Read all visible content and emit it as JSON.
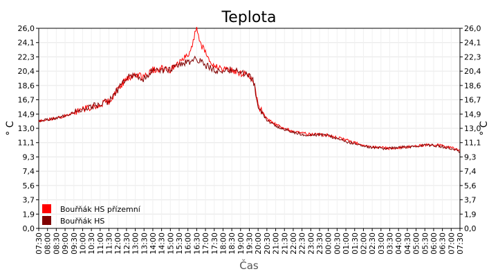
{
  "chart_data": {
    "type": "line",
    "title": "Teplota",
    "xlabel": "Čas",
    "ylabel_left": "° C",
    "ylabel_right": "° C",
    "ylim": [
      0,
      26
    ],
    "y_ticks": [
      "0,0",
      "1,9",
      "3,7",
      "5,6",
      "7,4",
      "9,3",
      "11,1",
      "13,0",
      "14,9",
      "16,7",
      "18,6",
      "20,4",
      "22,3",
      "24,1",
      "26,0"
    ],
    "x_ticks": [
      "07:30",
      "08:00",
      "08:30",
      "09:00",
      "09:30",
      "10:00",
      "10:30",
      "11:00",
      "11:30",
      "12:00",
      "12:30",
      "13:00",
      "13:30",
      "14:00",
      "14:30",
      "15:00",
      "15:30",
      "16:00",
      "16:30",
      "17:00",
      "17:30",
      "18:00",
      "18:30",
      "19:00",
      "19:30",
      "20:00",
      "20:30",
      "21:00",
      "21:30",
      "22:00",
      "22:30",
      "23:00",
      "23:30",
      "00:00",
      "00:30",
      "01:00",
      "01:30",
      "02:00",
      "02:30",
      "03:00",
      "03:30",
      "04:00",
      "04:30",
      "05:00",
      "05:30",
      "06:00",
      "06:30",
      "07:00",
      "07:30"
    ],
    "grid": true,
    "legend_position": "bottom-left",
    "series": [
      {
        "name": "Bouřňák HS přízemní",
        "color": "#ff0000",
        "x": [
          "07:30",
          "08:30",
          "09:30",
          "10:30",
          "11:30",
          "12:00",
          "12:30",
          "13:00",
          "13:30",
          "14:00",
          "14:30",
          "15:00",
          "15:30",
          "16:00",
          "16:15",
          "16:30",
          "16:45",
          "17:00",
          "17:30",
          "18:00",
          "18:30",
          "19:00",
          "19:30",
          "19:45",
          "20:00",
          "20:30",
          "21:00",
          "21:30",
          "22:00",
          "22:30",
          "23:00",
          "23:30",
          "00:00",
          "00:30",
          "01:00",
          "01:30",
          "02:00",
          "02:30",
          "03:00",
          "03:30",
          "04:00",
          "04:30",
          "05:00",
          "05:30",
          "06:00",
          "06:30",
          "07:00",
          "07:30"
        ],
        "values": [
          14.0,
          14.3,
          15.0,
          15.8,
          16.5,
          18.0,
          19.5,
          20.0,
          19.6,
          20.6,
          20.8,
          20.5,
          21.5,
          22.5,
          24.0,
          26.0,
          23.8,
          23.0,
          21.0,
          20.8,
          20.6,
          20.2,
          19.9,
          19.2,
          16.0,
          14.2,
          13.5,
          13.0,
          12.6,
          12.4,
          12.2,
          12.2,
          12.1,
          11.8,
          11.5,
          11.1,
          10.8,
          10.6,
          10.5,
          10.4,
          10.5,
          10.6,
          10.7,
          10.8,
          10.9,
          10.7,
          10.5,
          10.1
        ]
      },
      {
        "name": "Bouřňák HS",
        "color": "#800000",
        "x": [
          "07:30",
          "08:30",
          "09:30",
          "10:30",
          "11:30",
          "12:00",
          "12:30",
          "13:00",
          "13:30",
          "14:00",
          "14:30",
          "15:00",
          "15:30",
          "16:00",
          "16:15",
          "16:30",
          "16:45",
          "17:00",
          "17:30",
          "18:00",
          "18:30",
          "19:00",
          "19:30",
          "19:45",
          "20:00",
          "20:30",
          "21:00",
          "21:30",
          "22:00",
          "22:30",
          "23:00",
          "23:30",
          "00:00",
          "00:30",
          "01:00",
          "01:30",
          "02:00",
          "02:30",
          "03:00",
          "03:30",
          "04:00",
          "04:30",
          "05:00",
          "05:30",
          "06:00",
          "06:30",
          "07:00",
          "07:30"
        ],
        "values": [
          14.0,
          14.3,
          15.0,
          15.8,
          16.5,
          18.0,
          19.5,
          20.0,
          19.4,
          20.8,
          20.6,
          20.5,
          21.3,
          21.6,
          21.8,
          22.0,
          21.6,
          21.2,
          20.6,
          20.5,
          20.6,
          20.2,
          19.9,
          19.0,
          16.0,
          14.0,
          13.3,
          12.9,
          12.5,
          12.2,
          12.1,
          12.2,
          12.0,
          11.7,
          11.3,
          11.0,
          10.7,
          10.5,
          10.4,
          10.4,
          10.5,
          10.6,
          10.7,
          10.8,
          10.8,
          10.6,
          10.4,
          10.0
        ]
      }
    ]
  }
}
